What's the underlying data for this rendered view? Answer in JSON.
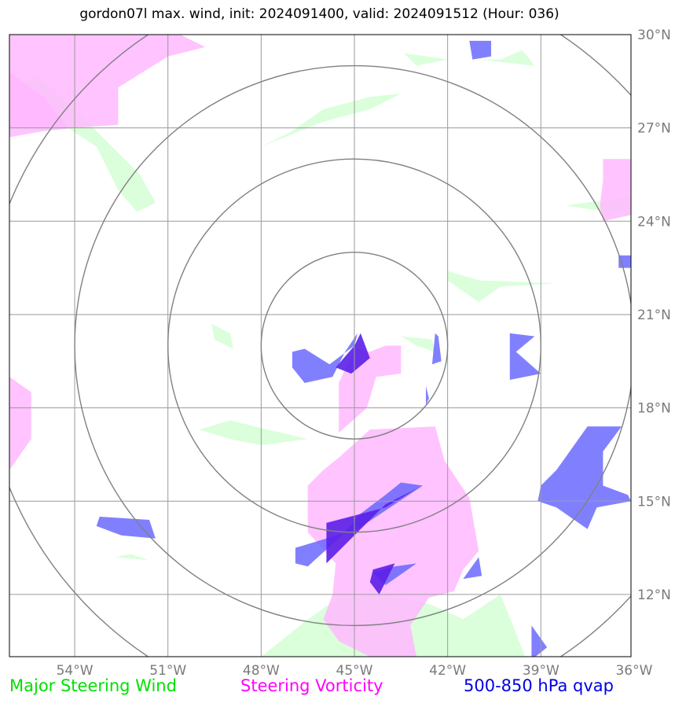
{
  "title": "gordon07l max. wind, init: 2024091400, valid: 2024091512 (Hour: 036)",
  "map": {
    "extent": {
      "lon": [
        -56.1,
        -36.1
      ],
      "lat": [
        10.0,
        30.0
      ]
    },
    "center": {
      "lon": -45.0,
      "lat": 20.0
    },
    "range_rings_deg": [
      3,
      6,
      9,
      12
    ],
    "lon_ticks": [
      -54,
      -51,
      -48,
      -45,
      -42,
      -39,
      -36
    ],
    "lat_ticks": [
      12,
      15,
      18,
      21,
      24,
      27,
      30
    ],
    "lon_labels": [
      "54°W",
      "51°W",
      "48°W",
      "45°W",
      "42°W",
      "39°W",
      "36°W"
    ],
    "lat_labels": [
      "12°N",
      "15°N",
      "18°N",
      "21°N",
      "24°N",
      "27°N",
      "30°N"
    ],
    "colors": {
      "wind": "#d8ffd8",
      "vorticity": "#ffb8ff",
      "qvap": "#6060ff",
      "grid": "#9a9a9a",
      "rings": "#808080"
    }
  },
  "layers": {
    "wind": [
      [
        [
          -56.1,
          27.5
        ],
        [
          -55,
          27.5
        ],
        [
          -53.3,
          26.4
        ],
        [
          -52.6,
          25.0
        ],
        [
          -52.0,
          24.3
        ],
        [
          -51.4,
          24.6
        ],
        [
          -51.9,
          25.5
        ],
        [
          -53.6,
          27.2
        ],
        [
          -55.2,
          28.7
        ],
        [
          -56.1,
          28.3
        ]
      ],
      [
        [
          -48.0,
          26.4
        ],
        [
          -47.0,
          26.9
        ],
        [
          -46.0,
          27.6
        ],
        [
          -44.5,
          28.0
        ],
        [
          -43.5,
          28.1
        ],
        [
          -44.5,
          27.6
        ],
        [
          -46.0,
          27.2
        ],
        [
          -47.5,
          26.6
        ]
      ],
      [
        [
          -41.0,
          29.2
        ],
        [
          -39.2,
          29.0
        ],
        [
          -39.6,
          29.5
        ],
        [
          -40.3,
          29.2
        ]
      ],
      [
        [
          -43.4,
          29.4
        ],
        [
          -42.0,
          29.2
        ],
        [
          -43.0,
          29.0
        ]
      ],
      [
        [
          -38.2,
          24.5
        ],
        [
          -36.1,
          24.8
        ],
        [
          -36.1,
          24.2
        ]
      ],
      [
        [
          -42.0,
          22.4
        ],
        [
          -41.0,
          22.1
        ],
        [
          -38.5,
          22.0
        ],
        [
          -40.3,
          21.9
        ],
        [
          -41.0,
          21.4
        ],
        [
          -42.0,
          22.1
        ]
      ],
      [
        [
          -49.6,
          20.7
        ],
        [
          -49.0,
          20.4
        ],
        [
          -48.9,
          19.9
        ],
        [
          -49.5,
          20.2
        ]
      ],
      [
        [
          -50.0,
          17.3
        ],
        [
          -49.0,
          17.0
        ],
        [
          -48.0,
          16.8
        ],
        [
          -46.5,
          17.0
        ],
        [
          -47.8,
          17.3
        ],
        [
          -49.0,
          17.6
        ]
      ],
      [
        [
          -48.0,
          10.0
        ],
        [
          -46.5,
          11.2
        ],
        [
          -45.5,
          11.9
        ],
        [
          -44.0,
          12.0
        ],
        [
          -42.6,
          11.7
        ],
        [
          -41.5,
          11.2
        ],
        [
          -40.3,
          12.0
        ],
        [
          -39.5,
          10.0
        ]
      ],
      [
        [
          -52.7,
          13.2
        ],
        [
          -51.6,
          13.1
        ],
        [
          -52.2,
          13.3
        ]
      ],
      [
        [
          -43.5,
          20.3
        ],
        [
          -42.5,
          20.2
        ],
        [
          -42.4,
          19.8
        ],
        [
          -43.0,
          20.0
        ]
      ]
    ],
    "vorticity": [
      [
        [
          -56.1,
          30.0
        ],
        [
          -50.6,
          30.0
        ],
        [
          -49.8,
          29.6
        ],
        [
          -51.0,
          29.3
        ],
        [
          -52.6,
          28.3
        ],
        [
          -52.6,
          27.1
        ],
        [
          -54.0,
          27.0
        ],
        [
          -55.0,
          26.9
        ],
        [
          -56.1,
          26.7
        ]
      ],
      [
        [
          -56.1,
          19.0
        ],
        [
          -55.4,
          18.5
        ],
        [
          -55.4,
          17.0
        ],
        [
          -56.1,
          16.0
        ]
      ],
      [
        [
          -45.5,
          16.4
        ],
        [
          -44.5,
          17.3
        ],
        [
          -42.4,
          17.4
        ],
        [
          -42.1,
          16.3
        ],
        [
          -41.3,
          15.1
        ],
        [
          -41.0,
          13.4
        ],
        [
          -41.5,
          12.8
        ],
        [
          -41.8,
          12.1
        ],
        [
          -42.6,
          11.9
        ],
        [
          -43.2,
          11.0
        ],
        [
          -43.0,
          10.0
        ],
        [
          -44.5,
          10.0
        ],
        [
          -45.5,
          10.5
        ],
        [
          -46.0,
          11.2
        ],
        [
          -45.7,
          12.0
        ],
        [
          -45.6,
          13.0
        ],
        [
          -46.5,
          14.0
        ],
        [
          -46.5,
          15.5
        ],
        [
          -46.0,
          16.0
        ]
      ],
      [
        [
          -45.5,
          17.2
        ],
        [
          -44.6,
          18.0
        ],
        [
          -44.3,
          19.0
        ],
        [
          -43.5,
          19.1
        ],
        [
          -43.5,
          20.0
        ],
        [
          -44.0,
          20.0
        ],
        [
          -44.5,
          19.8
        ],
        [
          -45.0,
          19.9
        ],
        [
          -45.5,
          18.8
        ]
      ],
      [
        [
          -37.0,
          26.0
        ],
        [
          -36.6,
          26.0
        ],
        [
          -36.1,
          26.0
        ],
        [
          -36.1,
          24.2
        ],
        [
          -37.0,
          24.0
        ],
        [
          -37.1,
          24.5
        ],
        [
          -37.0,
          25.3
        ]
      ],
      [
        [
          -56.1,
          28.8
        ],
        [
          -55.0,
          28.0
        ],
        [
          -54.2,
          27.0
        ],
        [
          -56.1,
          27.0
        ]
      ]
    ],
    "qvap": [
      [
        [
          -46.6,
          19.9
        ],
        [
          -45.8,
          19.4
        ],
        [
          -45.0,
          20.0
        ],
        [
          -44.9,
          20.4
        ],
        [
          -45.3,
          19.8
        ],
        [
          -45.7,
          19.0
        ],
        [
          -46.6,
          18.8
        ],
        [
          -47.0,
          19.3
        ],
        [
          -47.0,
          19.8
        ]
      ],
      [
        [
          -42.3,
          20.3
        ],
        [
          -42.2,
          19.5
        ],
        [
          -42.5,
          19.4
        ],
        [
          -42.4,
          20.4
        ]
      ],
      [
        [
          -40.0,
          20.4
        ],
        [
          -39.2,
          20.3
        ],
        [
          -39.8,
          19.8
        ],
        [
          -39.0,
          19.1
        ],
        [
          -40.0,
          18.9
        ]
      ],
      [
        [
          -37.5,
          17.4
        ],
        [
          -36.4,
          17.4
        ],
        [
          -37.0,
          16.6
        ],
        [
          -37.0,
          15.5
        ],
        [
          -36.2,
          15.2
        ],
        [
          -36.1,
          15.0
        ],
        [
          -37.2,
          14.8
        ],
        [
          -37.5,
          14.1
        ],
        [
          -38.5,
          14.8
        ],
        [
          -39.1,
          15.0
        ],
        [
          -39.0,
          15.5
        ],
        [
          -38.5,
          16.0
        ]
      ],
      [
        [
          -53.2,
          14.5
        ],
        [
          -51.6,
          14.4
        ],
        [
          -51.4,
          13.8
        ],
        [
          -52.5,
          13.9
        ],
        [
          -53.3,
          14.2
        ]
      ],
      [
        [
          -46.9,
          13.5
        ],
        [
          -45.9,
          13.8
        ],
        [
          -44.9,
          14.1
        ],
        [
          -44.0,
          14.7
        ],
        [
          -42.8,
          15.5
        ],
        [
          -43.5,
          15.6
        ],
        [
          -44.0,
          15.2
        ],
        [
          -44.8,
          14.6
        ],
        [
          -45.4,
          13.9
        ],
        [
          -46.5,
          12.9
        ],
        [
          -46.9,
          13.0
        ]
      ],
      [
        [
          -43.7,
          12.9
        ],
        [
          -43.0,
          13.0
        ],
        [
          -44.0,
          12.3
        ],
        [
          -44.4,
          12.7
        ]
      ],
      [
        [
          -41.5,
          12.5
        ],
        [
          -41.0,
          13.2
        ],
        [
          -40.9,
          12.6
        ]
      ],
      [
        [
          -39.3,
          11.0
        ],
        [
          -38.8,
          10.3
        ],
        [
          -39.3,
          9.9
        ]
      ],
      [
        [
          -41.3,
          29.8
        ],
        [
          -40.6,
          29.8
        ],
        [
          -40.6,
          29.3
        ],
        [
          -41.2,
          29.2
        ]
      ],
      [
        [
          -36.1,
          22.9
        ],
        [
          -36.5,
          22.9
        ],
        [
          -36.5,
          22.5
        ],
        [
          -36.1,
          22.5
        ]
      ],
      [
        [
          -42.7,
          18.7
        ],
        [
          -42.6,
          18.3
        ],
        [
          -42.7,
          18.1
        ]
      ]
    ],
    "qvap_dark": [
      [
        [
          -45.0,
          20.0
        ],
        [
          -44.8,
          20.4
        ],
        [
          -44.5,
          19.6
        ],
        [
          -45.1,
          19.1
        ],
        [
          -45.6,
          19.3
        ]
      ],
      [
        [
          -45.9,
          14.3
        ],
        [
          -44.0,
          14.8
        ],
        [
          -43.0,
          15.4
        ],
        [
          -44.0,
          14.9
        ],
        [
          -45.9,
          13.0
        ]
      ],
      [
        [
          -44.4,
          12.8
        ],
        [
          -43.7,
          13.0
        ],
        [
          -44.2,
          12.0
        ],
        [
          -44.5,
          12.4
        ]
      ]
    ]
  },
  "legend": {
    "wind": "Major Steering Wind",
    "vorticity": "Steering Vorticity",
    "qvap": "500-850 hPa qvap"
  }
}
